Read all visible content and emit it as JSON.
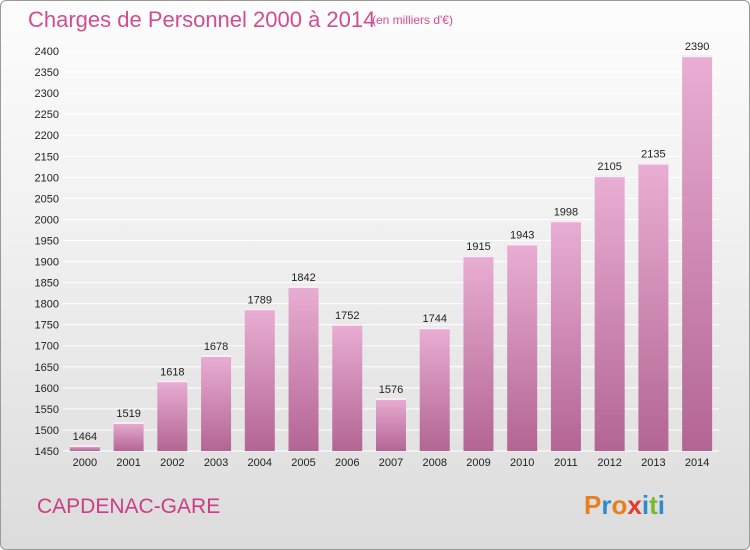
{
  "header": {
    "title": "Charges de Personnel 2000 à 2014",
    "subtitle": "(en milliers d'€)"
  },
  "footer": {
    "commune": "CAPDENAC-GARE",
    "brand": "Proxiti",
    "brand_colors": [
      "#e8801f",
      "#2d8ccf",
      "#e8801f",
      "#e23b2e",
      "#2d8ccf",
      "#7cb928",
      "#2d8ccf"
    ]
  },
  "colors": {
    "title": "#d24c92",
    "bar_top": "#e9aed4",
    "bar_bottom": "#b36593",
    "grid": "#ffffff"
  },
  "chart_data": {
    "type": "bar",
    "title": "Charges de Personnel 2000 à 2014",
    "subtitle": "(en milliers d'€)",
    "categories": [
      "2000",
      "2001",
      "2002",
      "2003",
      "2004",
      "2005",
      "2006",
      "2007",
      "2008",
      "2009",
      "2010",
      "2011",
      "2012",
      "2013",
      "2014"
    ],
    "values": [
      1464,
      1519,
      1618,
      1678,
      1789,
      1842,
      1752,
      1576,
      1744,
      1915,
      1943,
      1998,
      2105,
      2135,
      2390
    ],
    "ylim": [
      1450,
      2400
    ],
    "ytick_step": 50,
    "grid": true,
    "data_labels": true
  }
}
